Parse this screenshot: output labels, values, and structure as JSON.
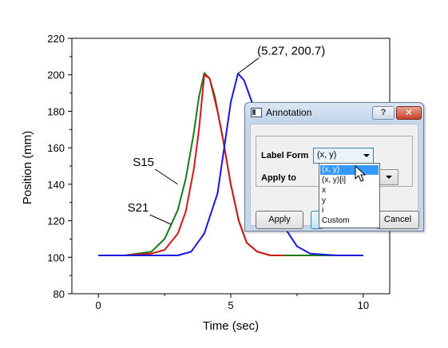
{
  "chart_data": {
    "type": "line",
    "xlabel": "Time (sec)",
    "ylabel": "Position (mm)",
    "xlim": [
      -1,
      11
    ],
    "ylim": [
      80,
      220
    ],
    "xticks": [
      0,
      5,
      10
    ],
    "yticks": [
      80,
      100,
      120,
      140,
      160,
      180,
      200,
      220
    ],
    "grid": false,
    "series": [
      {
        "color": "#1a7a1a",
        "x": [
          0,
          1,
          2,
          2.5,
          3,
          3.3,
          3.6,
          3.8,
          4,
          4.2,
          4.4,
          4.7,
          5,
          5.3,
          5.6,
          6,
          6.5,
          7,
          8,
          9,
          10
        ],
        "y": [
          101,
          101,
          103,
          110,
          126,
          143,
          168,
          188,
          201,
          198,
          188,
          165,
          140,
          120,
          108,
          103,
          101,
          101,
          101,
          101,
          101
        ]
      },
      {
        "color": "#d01818",
        "x": [
          0,
          1,
          2,
          2.5,
          3,
          3.3,
          3.6,
          3.8,
          4,
          4.2,
          4.5,
          4.7,
          5,
          5.3,
          5.6,
          6,
          6.5,
          7
        ],
        "y": [
          101,
          101,
          102,
          104,
          113,
          125,
          148,
          170,
          200,
          198,
          180,
          165,
          140,
          120,
          108,
          103,
          101,
          101
        ]
      },
      {
        "color": "#1818e0",
        "x": [
          0,
          1,
          2,
          3,
          3.5,
          4,
          4.5,
          4.8,
          5,
          5.27,
          5.5,
          5.8,
          6.1,
          6.5,
          7,
          7.5,
          8,
          9,
          10
        ],
        "y": [
          101,
          101,
          101,
          101,
          103,
          113,
          135,
          165,
          185,
          200.7,
          197,
          185,
          163,
          138,
          117,
          106,
          102,
          101,
          101
        ]
      }
    ],
    "annotations": [
      {
        "text": "(5.27, 200.7)",
        "x": 5.27,
        "y": 200.7,
        "tx": 6.0,
        "ty": 211
      },
      {
        "text": "S15",
        "x": 3.0,
        "y": 140,
        "tx": 1.3,
        "ty": 150
      },
      {
        "text": "S21",
        "x": 2.75,
        "y": 118,
        "tx": 1.1,
        "ty": 125
      }
    ]
  },
  "dialog": {
    "title": "Annotation",
    "help_label": "?",
    "close_label": "✕",
    "label_form_label": "Label Form",
    "label_form_value": "(x, y)",
    "apply_to_label": "Apply to",
    "apply_button": "Apply",
    "ok_button": "",
    "cancel_button": "Cancel",
    "options": [
      "(x, y)",
      "(x, y)[i]",
      "x",
      "y",
      "i",
      "Custom"
    ],
    "selected_option": "(x, y)"
  }
}
